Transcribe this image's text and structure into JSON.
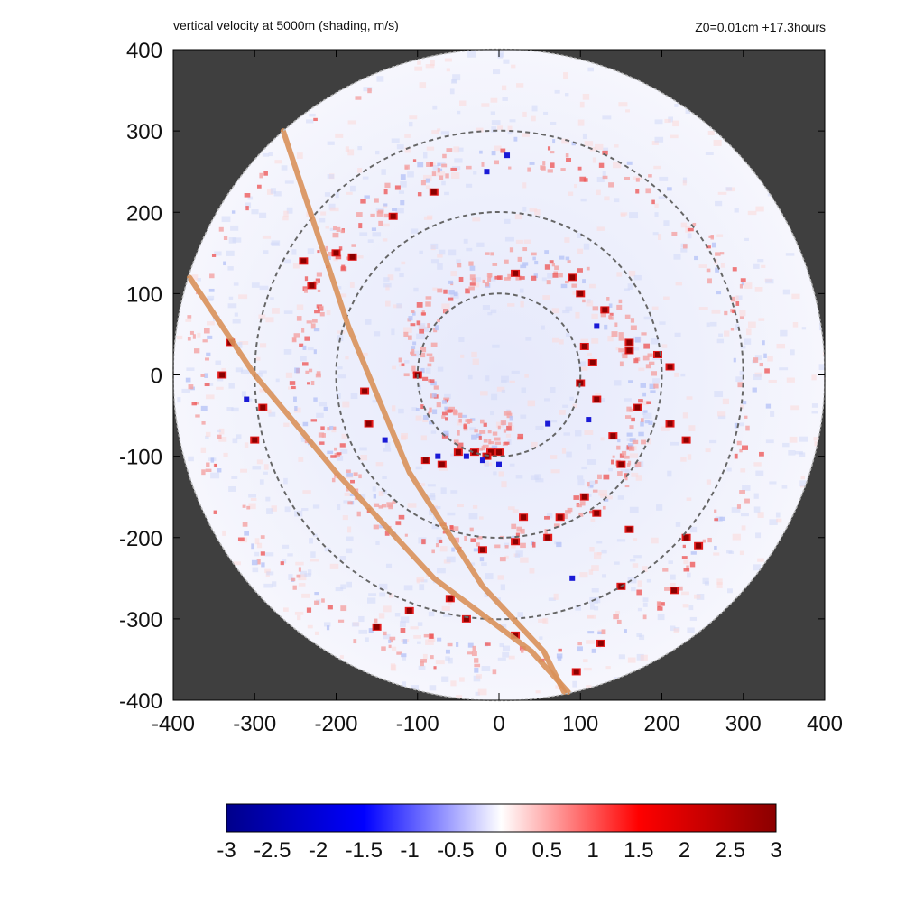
{
  "header": {
    "title": "vertical velocity at 5000m (shading, m/s)",
    "info": "Z0=0.01cm  +17.3hours"
  },
  "chart_data": {
    "type": "heatmap",
    "title": "vertical velocity at 5000m (shading, m/s)",
    "annotation": "Z0=0.01cm  +17.3hours",
    "xlabel": "",
    "ylabel": "",
    "xlim": [
      -400,
      400
    ],
    "ylim": [
      -400,
      400
    ],
    "x_ticks": [
      -400,
      -300,
      -200,
      -100,
      0,
      100,
      200,
      300,
      400
    ],
    "y_ticks": [
      400,
      300,
      200,
      100,
      0,
      -100,
      -200,
      -300,
      -400
    ],
    "x_tick_labels": [
      "-400",
      "-300",
      "-200",
      "-100",
      "0",
      "100",
      "200",
      "300",
      "400"
    ],
    "y_tick_labels": [
      "400",
      "300",
      "200",
      "100",
      "0",
      "-100",
      "-200",
      "-300",
      "-400"
    ],
    "domain_radius": 400,
    "range_rings": [
      100,
      200,
      300
    ],
    "tracks": [
      {
        "points": [
          [
            -265,
            300
          ],
          [
            -185,
            60
          ],
          [
            -110,
            -120
          ],
          [
            -20,
            -260
          ],
          [
            55,
            -340
          ],
          [
            80,
            -390
          ]
        ]
      },
      {
        "points": [
          [
            -380,
            120
          ],
          [
            -300,
            0
          ],
          [
            -200,
            -120
          ],
          [
            -80,
            -250
          ],
          [
            40,
            -340
          ],
          [
            85,
            -390
          ]
        ]
      }
    ],
    "outside_color": "#3f3f3f",
    "colorbar": {
      "min": -3,
      "max": 3,
      "ticks": [
        -3,
        -2.5,
        -2,
        -1.5,
        -1,
        -0.5,
        0,
        0.5,
        1,
        1.5,
        2,
        2.5,
        3
      ],
      "tick_labels": [
        "-3",
        "-2.5",
        "-2",
        "-1.5",
        "-1",
        "-0.5",
        "0",
        "0.5",
        "1",
        "1.5",
        "2",
        "2.5",
        "3"
      ],
      "colors": [
        "#00008b",
        "#0000ff",
        "#ffffff",
        "#ff0000",
        "#8b0000"
      ]
    },
    "strong_updrafts": [
      [
        -30,
        -95
      ],
      [
        -10,
        -95
      ],
      [
        -50,
        -95
      ],
      [
        -90,
        -105
      ],
      [
        -70,
        -110
      ],
      [
        -15,
        -100
      ],
      [
        0,
        -95
      ],
      [
        100,
        -10
      ],
      [
        115,
        15
      ],
      [
        105,
        35
      ],
      [
        120,
        -30
      ],
      [
        160,
        30
      ],
      [
        195,
        25
      ],
      [
        210,
        10
      ],
      [
        170,
        -40
      ],
      [
        140,
        -75
      ],
      [
        210,
        -60
      ],
      [
        230,
        -80
      ],
      [
        105,
        -150
      ],
      [
        120,
        -170
      ],
      [
        75,
        -175
      ],
      [
        30,
        -175
      ],
      [
        -20,
        -215
      ],
      [
        20,
        -205
      ],
      [
        60,
        -200
      ],
      [
        160,
        -190
      ],
      [
        230,
        -200
      ],
      [
        245,
        -210
      ],
      [
        215,
        -265
      ],
      [
        150,
        -260
      ],
      [
        125,
        -330
      ],
      [
        95,
        -365
      ],
      [
        20,
        -320
      ],
      [
        -40,
        -300
      ],
      [
        -60,
        -275
      ],
      [
        -110,
        -290
      ],
      [
        -150,
        -310
      ],
      [
        -160,
        -60
      ],
      [
        -240,
        140
      ],
      [
        -200,
        150
      ],
      [
        -180,
        145
      ],
      [
        -130,
        195
      ],
      [
        -80,
        225
      ],
      [
        20,
        125
      ],
      [
        90,
        120
      ],
      [
        100,
        100
      ],
      [
        130,
        80
      ],
      [
        -100,
        0
      ],
      [
        -165,
        -20
      ],
      [
        -300,
        -80
      ],
      [
        -290,
        -40
      ],
      [
        -330,
        40
      ],
      [
        -340,
        0
      ],
      [
        -230,
        110
      ],
      [
        150,
        -110
      ],
      [
        160,
        40
      ]
    ],
    "strong_downdrafts": [
      [
        -20,
        -105
      ],
      [
        -40,
        -100
      ],
      [
        0,
        -110
      ],
      [
        -75,
        -100
      ],
      [
        60,
        -60
      ],
      [
        110,
        -55
      ],
      [
        120,
        60
      ],
      [
        -15,
        250
      ],
      [
        10,
        270
      ],
      [
        -140,
        -80
      ],
      [
        -310,
        -30
      ],
      [
        90,
        -250
      ]
    ]
  }
}
